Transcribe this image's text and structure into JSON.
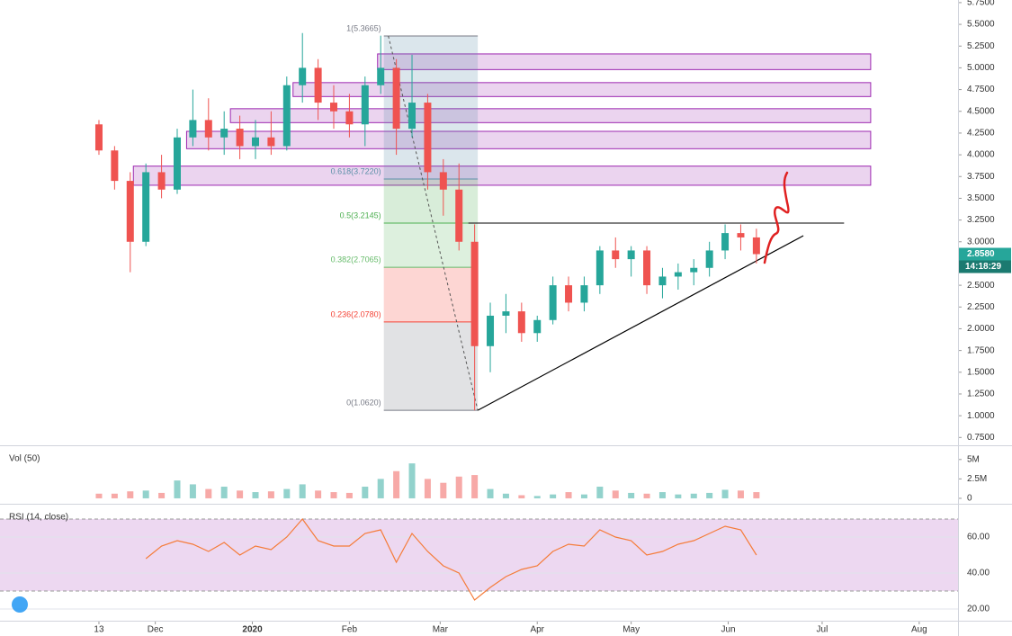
{
  "chart_data": [
    {
      "type": "candlestick",
      "x": [
        0,
        5,
        10,
        15,
        20,
        25,
        30,
        35,
        40,
        45,
        50,
        55,
        60,
        65,
        70,
        75,
        80,
        85,
        90,
        95,
        100,
        105,
        110,
        115,
        120,
        125,
        130,
        135,
        140,
        145,
        150,
        155,
        160,
        165,
        170,
        175,
        180,
        185,
        190,
        195,
        200,
        205,
        210
      ],
      "open": [
        4.35,
        4.05,
        3.7,
        3.0,
        3.8,
        3.6,
        4.2,
        4.4,
        4.2,
        4.3,
        4.1,
        4.2,
        4.1,
        4.8,
        5.0,
        4.6,
        4.5,
        4.35,
        4.8,
        5.0,
        4.3,
        4.6,
        3.8,
        3.6,
        3.0,
        1.8,
        2.15,
        2.2,
        1.95,
        2.1,
        2.5,
        2.3,
        2.5,
        2.9,
        2.8,
        2.9,
        2.5,
        2.6,
        2.65,
        2.7,
        2.9,
        3.1,
        3.05
      ],
      "high": [
        4.4,
        4.1,
        3.8,
        3.9,
        4.0,
        4.3,
        4.75,
        4.65,
        4.5,
        4.45,
        4.4,
        4.5,
        4.9,
        5.4,
        5.1,
        4.8,
        4.7,
        4.9,
        5.37,
        5.1,
        5.15,
        4.7,
        3.95,
        3.9,
        3.2,
        2.3,
        2.4,
        2.3,
        2.15,
        2.6,
        2.6,
        2.6,
        2.95,
        3.05,
        2.95,
        2.95,
        2.7,
        2.75,
        2.8,
        3.0,
        3.2,
        3.2,
        3.15
      ],
      "low": [
        4.0,
        3.6,
        2.65,
        2.95,
        3.5,
        3.55,
        4.1,
        4.05,
        4.0,
        3.95,
        3.95,
        4.0,
        4.05,
        4.6,
        4.4,
        4.3,
        4.2,
        4.1,
        4.7,
        4.0,
        4.2,
        3.6,
        3.3,
        2.9,
        1.062,
        1.5,
        1.95,
        1.85,
        1.85,
        2.05,
        2.2,
        2.2,
        2.4,
        2.7,
        2.6,
        2.4,
        2.35,
        2.45,
        2.5,
        2.6,
        2.8,
        2.9,
        2.75
      ],
      "close": [
        4.05,
        3.7,
        3.0,
        3.8,
        3.6,
        4.2,
        4.4,
        4.2,
        4.3,
        4.1,
        4.2,
        4.1,
        4.8,
        5.0,
        4.6,
        4.5,
        4.35,
        4.8,
        5.0,
        4.3,
        4.6,
        3.8,
        3.6,
        3.0,
        1.8,
        2.15,
        2.2,
        1.95,
        2.1,
        2.5,
        2.3,
        2.5,
        2.9,
        2.8,
        2.9,
        2.5,
        2.6,
        2.65,
        2.7,
        2.9,
        3.1,
        3.05,
        2.858
      ],
      "up_color": "#26a69a",
      "down_color": "#ef5350",
      "xlim": [
        -31.6,
        274.4
      ],
      "ylim": [
        0.66,
        5.78
      ],
      "xticks": [
        {
          "value": 0,
          "label": "13"
        },
        {
          "value": 18,
          "label": "Dec"
        },
        {
          "value": 49,
          "label": "2020"
        },
        {
          "value": 80,
          "label": "Feb"
        },
        {
          "value": 109,
          "label": "Mar"
        },
        {
          "value": 140,
          "label": "Apr"
        },
        {
          "value": 170,
          "label": "May"
        },
        {
          "value": 201,
          "label": "Jun"
        },
        {
          "value": 231,
          "label": "Jul"
        },
        {
          "value": 262,
          "label": "Aug"
        }
      ],
      "yticks": [
        {
          "value": 0.75,
          "label": "0.7500"
        },
        {
          "value": 1.0,
          "label": "1.0000"
        },
        {
          "value": 1.25,
          "label": "1.2500"
        },
        {
          "value": 1.5,
          "label": "1.5000"
        },
        {
          "value": 1.75,
          "label": "1.7500"
        },
        {
          "value": 2.0,
          "label": "2.0000"
        },
        {
          "value": 2.25,
          "label": "2.2500"
        },
        {
          "value": 2.5,
          "label": "2.5000"
        },
        {
          "value": 2.75,
          "label": "2.7500"
        },
        {
          "value": 3.0,
          "label": "3.0000"
        },
        {
          "value": 3.25,
          "label": "3.2500"
        },
        {
          "value": 3.5,
          "label": "3.5000"
        },
        {
          "value": 3.75,
          "label": "3.7500"
        },
        {
          "value": 4.0,
          "label": "4.0000"
        },
        {
          "value": 4.25,
          "label": "4.2500"
        },
        {
          "value": 4.5,
          "label": "4.5000"
        },
        {
          "value": 4.75,
          "label": "4.7500"
        },
        {
          "value": 5.0,
          "label": "5.0000"
        },
        {
          "value": 5.25,
          "label": "5.2500"
        },
        {
          "value": 5.5,
          "label": "5.5000"
        },
        {
          "value": 5.75,
          "label": "5.7500"
        }
      ],
      "fib_x": [
        91,
        121
      ],
      "fib_levels": [
        {
          "label": "1(5.3665)",
          "value": 5.3665,
          "color": "#787b86"
        },
        {
          "label": "0.618(3.7220)",
          "value": 3.722,
          "color": "#5b8fa8"
        },
        {
          "label": "0.5(3.2145)",
          "value": 3.2145,
          "color": "#4caf50"
        },
        {
          "label": "0.382(2.7065)",
          "value": 2.7065,
          "color": "#66bb6a"
        },
        {
          "label": "0.236(2.0780)",
          "value": 2.078,
          "color": "#f44336"
        },
        {
          "label": "0(1.0620)",
          "value": 1.062,
          "color": "#787b86"
        }
      ],
      "zones": [
        {
          "start": 11,
          "end": 246.5,
          "low": 3.65,
          "high": 3.87
        },
        {
          "start": 28,
          "end": 246.5,
          "low": 4.07,
          "high": 4.27
        },
        {
          "start": 42,
          "end": 246.5,
          "low": 4.37,
          "high": 4.53
        },
        {
          "start": 62,
          "end": 246.5,
          "low": 4.67,
          "high": 4.83
        },
        {
          "start": 89,
          "end": 246.5,
          "low": 4.98,
          "high": 5.16
        }
      ],
      "zone_color": "#9c27b0",
      "trendline": {
        "x": [
          121,
          225
        ],
        "y": [
          1.062,
          3.07
        ]
      },
      "resistance": {
        "x": [
          118,
          238
        ],
        "y": 3.2145
      },
      "last_price": {
        "value": 2.858,
        "label": "2.8580"
      },
      "countdown": "14:18:29"
    },
    {
      "type": "bar",
      "title": "Vol (50)",
      "values": [
        0.6,
        0.6,
        0.9,
        1.0,
        0.7,
        2.3,
        1.8,
        1.2,
        1.5,
        1.0,
        0.8,
        0.9,
        1.2,
        1.8,
        1.0,
        0.8,
        0.7,
        1.5,
        2.5,
        3.5,
        4.5,
        2.5,
        2.0,
        2.8,
        3.0,
        1.2,
        0.6,
        0.4,
        0.3,
        0.5,
        0.8,
        0.5,
        1.5,
        1.0,
        0.7,
        0.6,
        0.8,
        0.5,
        0.6,
        0.7,
        1.1,
        1.0,
        0.8
      ],
      "ylim": [
        -0.7,
        6.6
      ],
      "yticks": [
        0,
        {
          "value": 2.5,
          "label": "2.5M"
        },
        {
          "value": 5,
          "label": "5M"
        }
      ]
    },
    {
      "type": "line",
      "title": "RSI (14, close)",
      "color": "#f57c3a",
      "values": [
        null,
        null,
        null,
        48,
        55,
        58,
        56,
        52,
        57,
        50,
        55,
        53,
        60,
        70,
        58,
        55,
        55,
        62,
        64,
        46,
        62,
        52,
        44,
        40,
        25,
        32,
        38,
        42,
        44,
        52,
        56,
        55,
        64,
        60,
        58,
        50,
        52,
        56,
        58,
        62,
        66,
        64,
        50
      ],
      "ylim": [
        13.5,
        77.5
      ],
      "band": [
        30,
        70
      ],
      "band_color": "#e1bee7",
      "yticks": [
        {
          "value": 20,
          "label": "20.00"
        },
        {
          "value": 40,
          "label": "40.00"
        },
        {
          "value": 60,
          "label": "60.00"
        }
      ]
    }
  ]
}
